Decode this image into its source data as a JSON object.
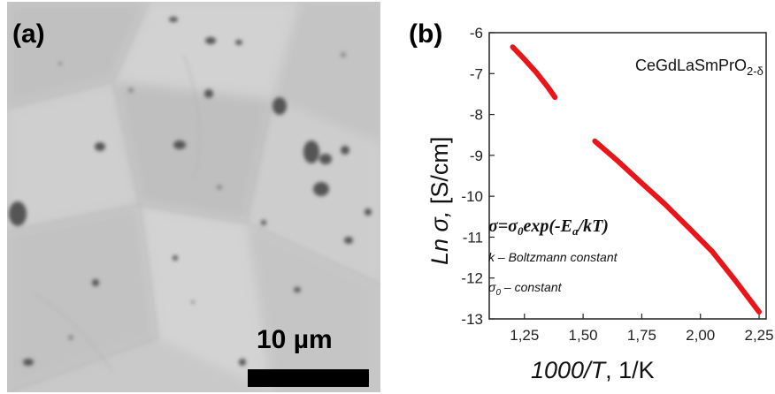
{
  "panel_a": {
    "label": "(a)",
    "scale_bar_label": "10 µm"
  },
  "panel_b": {
    "label": "(b)"
  },
  "colors": {
    "series": "#e8161b",
    "micrograph_base": "#c9c9c9",
    "scale_bar": "#000000"
  },
  "chart_data": {
    "type": "line",
    "title": "CeGdLaSmPrO2-δ",
    "title_main": "CeGdLaSmPrO",
    "title_sub": "2-δ",
    "xlabel": "1000/T, 1/K",
    "xlabel_italic": "1000/T",
    "xlabel_rest": ", 1/K",
    "ylabel": "Ln σ, [S/cm]",
    "ylabel_prefix": "Ln σ,",
    "ylabel_unit": " [S/cm]",
    "xlim": [
      1.1,
      2.28
    ],
    "ylim": [
      -13,
      -6
    ],
    "xticks": [
      "1,25",
      "1,50",
      "1,75",
      "2,00",
      "2,25"
    ],
    "xtick_values": [
      1.25,
      1.5,
      1.75,
      2.0,
      2.25
    ],
    "yticks": [
      "-6",
      "-7",
      "-8",
      "-9",
      "-10",
      "-11",
      "-12",
      "-13"
    ],
    "ytick_values": [
      -6,
      -7,
      -8,
      -9,
      -10,
      -11,
      -12,
      -13
    ],
    "grid": false,
    "series": [
      {
        "x": [
          1.2,
          1.25,
          1.3,
          1.35,
          1.38
        ],
        "y": [
          -6.35,
          -6.65,
          -6.97,
          -7.33,
          -7.58
        ]
      },
      {
        "x": [
          1.55,
          1.65,
          1.75,
          1.85,
          1.95,
          2.05,
          2.15,
          2.25
        ],
        "y": [
          -8.65,
          -9.15,
          -9.68,
          -10.2,
          -10.77,
          -11.35,
          -12.07,
          -12.83
        ]
      }
    ],
    "annotations": {
      "equation_sigma": "σ=σ",
      "equation_sub0": "0",
      "equation_exp": "exp(-E",
      "equation_suba": "a",
      "equation_tail": "/kT)",
      "note_k": "k – Boltzmann constant",
      "note_sigma": "σ",
      "note_sigma_sub": "0",
      "note_sigma_rest": " – constant"
    }
  }
}
